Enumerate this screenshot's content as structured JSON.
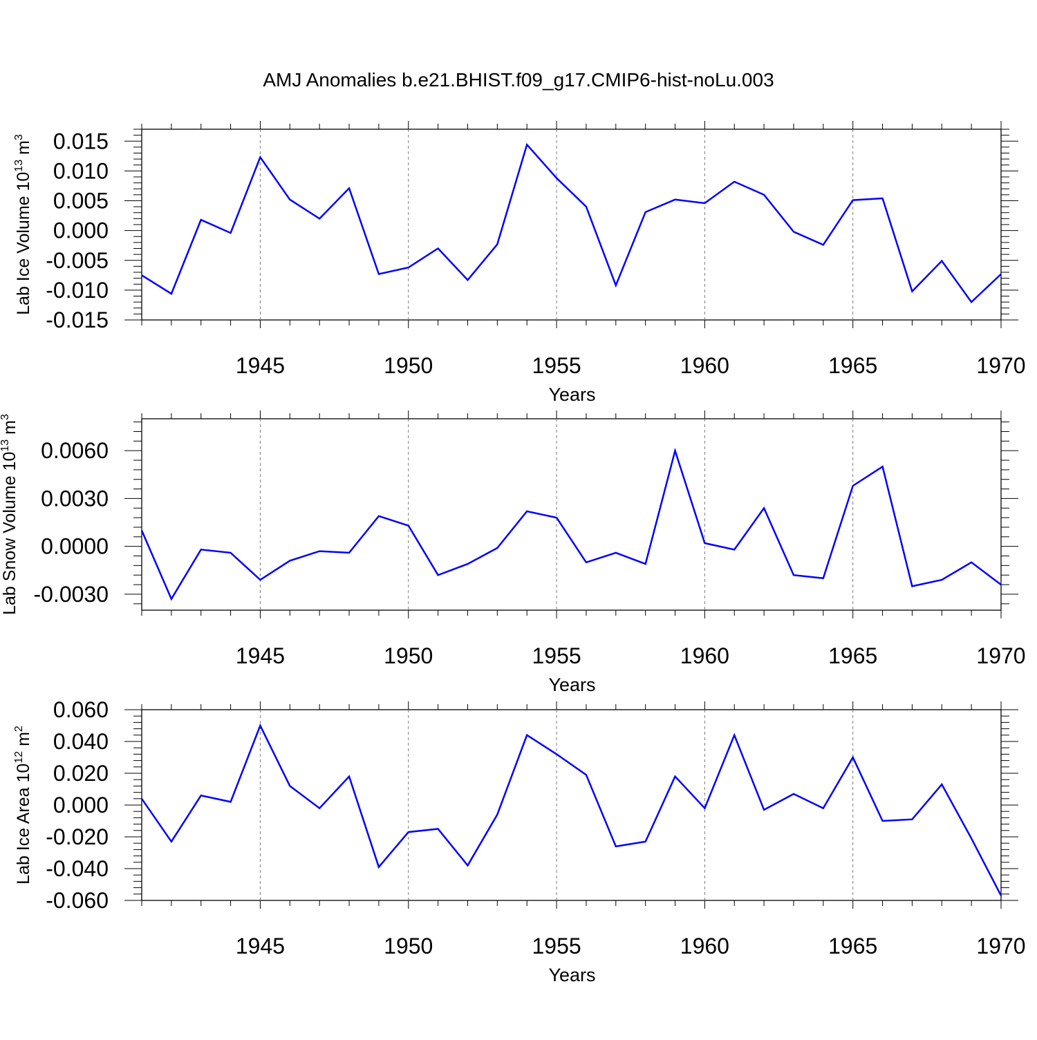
{
  "title": "AMJ Anomalies b.e21.BHIST.f09_g17.CMIP6-hist-noLu.003",
  "chart_data": [
    {
      "type": "line",
      "ylabel_main": "Lab Ice Volume 10",
      "ylabel_exp": "13",
      "ylabel_unit": " m",
      "ylabel_unit_exp": "3",
      "xlabel": "Years",
      "xlim": [
        1941,
        1970
      ],
      "ylim": [
        -0.015,
        0.017
      ],
      "yticks": [
        "0.015",
        "0.010",
        "0.005",
        "0.000",
        "-0.005",
        "-0.010",
        "-0.015"
      ],
      "ytick_values": [
        0.015,
        0.01,
        0.005,
        0.0,
        -0.005,
        -0.01,
        -0.015
      ],
      "xticks": [
        "1945",
        "1950",
        "1955",
        "1960",
        "1965",
        "1970"
      ],
      "grid": "vertical dashed at major x ticks",
      "series": [
        {
          "color": "#0000ff",
          "x": [
            1941,
            1942,
            1943,
            1944,
            1945,
            1946,
            1947,
            1948,
            1949,
            1950,
            1951,
            1952,
            1953,
            1954,
            1955,
            1956,
            1957,
            1958,
            1959,
            1960,
            1961,
            1962,
            1963,
            1964,
            1965,
            1966,
            1967,
            1968,
            1969,
            1970
          ],
          "values": [
            -0.0075,
            -0.0106,
            0.0018,
            -0.0004,
            0.0123,
            0.0052,
            0.002,
            0.0071,
            -0.0073,
            -0.0062,
            -0.003,
            -0.0083,
            -0.0023,
            0.0144,
            0.0088,
            0.004,
            -0.0092,
            0.0031,
            0.0052,
            0.0046,
            0.0082,
            0.006,
            -0.0002,
            -0.0024,
            0.0051,
            0.0054,
            -0.0102,
            -0.0051,
            -0.012,
            -0.0073
          ]
        }
      ]
    },
    {
      "type": "line",
      "ylabel_main": "Lab Snow Volume 10",
      "ylabel_exp": "13",
      "ylabel_unit": " m",
      "ylabel_unit_exp": "3",
      "xlabel": "Years",
      "xlim": [
        1941,
        1970
      ],
      "ylim": [
        -0.004,
        0.008
      ],
      "yticks": [
        "0.0060",
        "0.0030",
        "0.0000",
        "-0.0030"
      ],
      "ytick_values": [
        0.006,
        0.003,
        0.0,
        -0.003
      ],
      "xticks": [
        "1945",
        "1950",
        "1955",
        "1960",
        "1965",
        "1970"
      ],
      "grid": "vertical dashed at major x ticks",
      "series": [
        {
          "color": "#0000ff",
          "x": [
            1941,
            1942,
            1943,
            1944,
            1945,
            1946,
            1947,
            1948,
            1949,
            1950,
            1951,
            1952,
            1953,
            1954,
            1955,
            1956,
            1957,
            1958,
            1959,
            1960,
            1961,
            1962,
            1963,
            1964,
            1965,
            1966,
            1967,
            1968,
            1969,
            1970
          ],
          "values": [
            0.001,
            -0.0033,
            -0.0002,
            -0.0004,
            -0.0021,
            -0.0009,
            -0.0003,
            -0.0004,
            0.0019,
            0.0013,
            -0.0018,
            -0.0011,
            -0.0001,
            0.0022,
            0.0018,
            -0.001,
            -0.0004,
            -0.0011,
            0.006,
            0.0002,
            -0.0002,
            0.0024,
            -0.0018,
            -0.002,
            0.0038,
            0.005,
            -0.0025,
            -0.0021,
            -0.001,
            -0.0024
          ]
        }
      ]
    },
    {
      "type": "line",
      "ylabel_main": "Lab Ice Area 10",
      "ylabel_exp": "12",
      "ylabel_unit": " m",
      "ylabel_unit_exp": "2",
      "xlabel": "Years",
      "xlim": [
        1941,
        1970
      ],
      "ylim": [
        -0.06,
        0.06
      ],
      "yticks": [
        "0.060",
        "0.040",
        "0.020",
        "0.000",
        "-0.020",
        "-0.040",
        "-0.060"
      ],
      "ytick_values": [
        0.06,
        0.04,
        0.02,
        0.0,
        -0.02,
        -0.04,
        -0.06
      ],
      "xticks": [
        "1945",
        "1950",
        "1955",
        "1960",
        "1965",
        "1970"
      ],
      "grid": "vertical dashed at major x ticks",
      "series": [
        {
          "color": "#0000ff",
          "x": [
            1941,
            1942,
            1943,
            1944,
            1945,
            1946,
            1947,
            1948,
            1949,
            1950,
            1951,
            1952,
            1953,
            1954,
            1955,
            1956,
            1957,
            1958,
            1959,
            1960,
            1961,
            1962,
            1963,
            1964,
            1965,
            1966,
            1967,
            1968,
            1969,
            1970
          ],
          "values": [
            0.004,
            -0.023,
            0.006,
            0.002,
            0.05,
            0.012,
            -0.002,
            0.018,
            -0.039,
            -0.017,
            -0.015,
            -0.038,
            -0.006,
            0.044,
            0.032,
            0.019,
            -0.026,
            -0.023,
            0.018,
            -0.002,
            0.044,
            -0.003,
            0.007,
            -0.002,
            0.03,
            -0.01,
            -0.009,
            0.013,
            -0.021,
            -0.057
          ]
        }
      ]
    }
  ]
}
